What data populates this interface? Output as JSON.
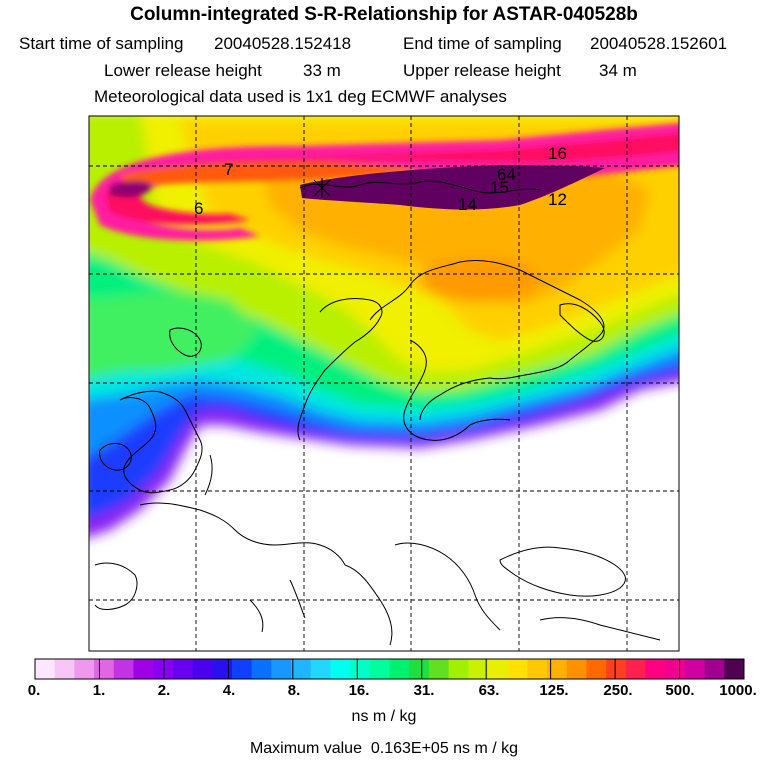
{
  "header": {
    "title": "Column-integrated S-R-Relationship for ASTAR-040528b",
    "start_label": "Start time of sampling",
    "start_value": "20040528.152418",
    "end_label": "End time of sampling",
    "end_value": "20040528.152601",
    "lower_label": "Lower release height",
    "lower_value": "33 m",
    "upper_label": "Upper release height",
    "upper_value": "34 m",
    "met_note": "Meteorological data used is 1x1 deg ECMWF analyses"
  },
  "map": {
    "contour_labels": [
      "7",
      "16",
      "64",
      "6",
      "15",
      "14",
      "12"
    ]
  },
  "colorbar": {
    "tick_labels": [
      "0.",
      "1.",
      "2.",
      "4.",
      "8.",
      "16.",
      "31.",
      "63.",
      "125.",
      "250.",
      "500.",
      "1000."
    ],
    "colors": [
      "#ffe6ff",
      "#f7c6f7",
      "#ee99ee",
      "#e066e6",
      "#c233e6",
      "#a000e6",
      "#8a00f0",
      "#6a00f0",
      "#4c00f0",
      "#2a10f0",
      "#1040ff",
      "#0a70ff",
      "#1898ff",
      "#20b6ff",
      "#20d8ff",
      "#00fff0",
      "#00ffc8",
      "#00ff9c",
      "#00f070",
      "#20e040",
      "#60e020",
      "#a0f000",
      "#c8f000",
      "#e8f000",
      "#ffe000",
      "#ffc800",
      "#ffb000",
      "#ff9000",
      "#ff6a00",
      "#ff4020",
      "#ff2050",
      "#ff0080",
      "#f00090",
      "#d000a0",
      "#a00090",
      "#500050"
    ],
    "unit": "ns m / kg"
  },
  "footer": {
    "max_label": "Maximum value",
    "max_value": "0.163E+05 ns m / kg"
  }
}
